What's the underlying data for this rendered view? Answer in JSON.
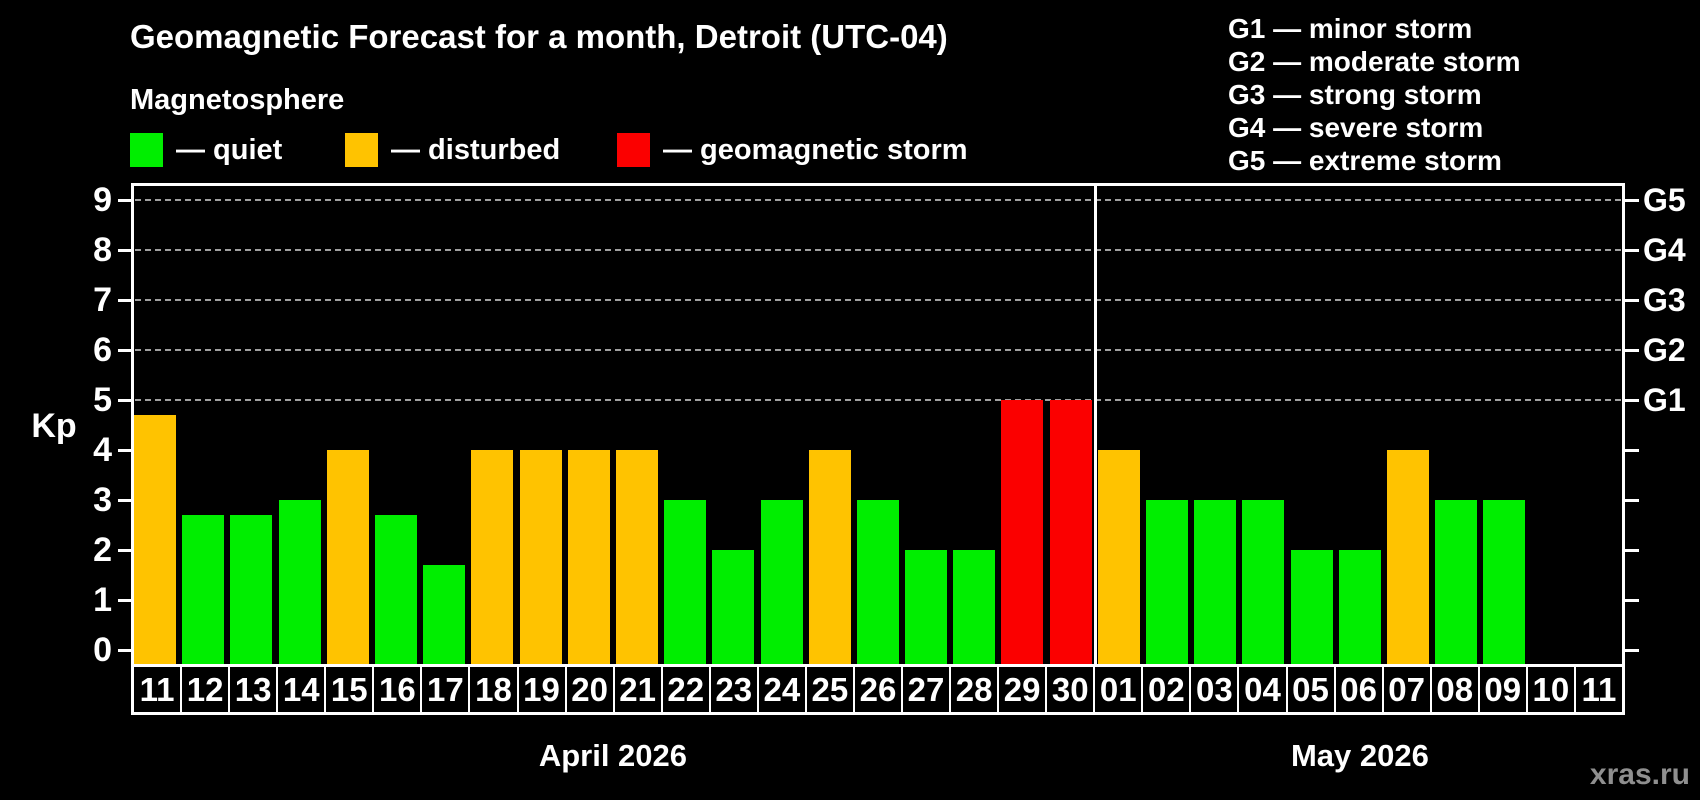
{
  "watermark": "xras.ru",
  "chart_data": {
    "type": "bar",
    "title": "Geomagnetic Forecast for a month, Detroit (UTC-04)",
    "subtitle": "Magnetosphere",
    "ylabel": "Kp",
    "ylim": [
      0,
      9
    ],
    "y_tick_labels": [
      "0",
      "1",
      "2",
      "3",
      "4",
      "5",
      "6",
      "7",
      "8",
      "9"
    ],
    "gridlines_at_kp": [
      5,
      6,
      7,
      8,
      9
    ],
    "grid": "dashed horizontal lines at Kp 5-9",
    "legend_position": "top-left",
    "legend": [
      {
        "key": "quiet",
        "label": "— quiet",
        "color": "#00ee00"
      },
      {
        "key": "disturbed",
        "label": "— disturbed",
        "color": "#ffc300"
      },
      {
        "key": "storm",
        "label": "— geomagnetic storm",
        "color": "#fb0000"
      }
    ],
    "g_scale_legend": [
      "G1 — minor storm",
      "G2 — moderate storm",
      "G3 — strong storm",
      "G4 — severe storm",
      "G5 — extreme storm"
    ],
    "right_axis": [
      {
        "kp": 5,
        "label": "G1"
      },
      {
        "kp": 6,
        "label": "G2"
      },
      {
        "kp": 7,
        "label": "G3"
      },
      {
        "kp": 8,
        "label": "G4"
      },
      {
        "kp": 9,
        "label": "G5"
      }
    ],
    "months": [
      {
        "label": "April 2026",
        "days": [
          {
            "day": "11",
            "kp": 4.7,
            "status": "disturbed"
          },
          {
            "day": "12",
            "kp": 2.7,
            "status": "quiet"
          },
          {
            "day": "13",
            "kp": 2.7,
            "status": "quiet"
          },
          {
            "day": "14",
            "kp": 3.0,
            "status": "quiet"
          },
          {
            "day": "15",
            "kp": 4.0,
            "status": "disturbed"
          },
          {
            "day": "16",
            "kp": 2.7,
            "status": "quiet"
          },
          {
            "day": "17",
            "kp": 1.7,
            "status": "quiet"
          },
          {
            "day": "18",
            "kp": 4.0,
            "status": "disturbed"
          },
          {
            "day": "19",
            "kp": 4.0,
            "status": "disturbed"
          },
          {
            "day": "20",
            "kp": 4.0,
            "status": "disturbed"
          },
          {
            "day": "21",
            "kp": 4.0,
            "status": "disturbed"
          },
          {
            "day": "22",
            "kp": 3.0,
            "status": "quiet"
          },
          {
            "day": "23",
            "kp": 2.0,
            "status": "quiet"
          },
          {
            "day": "24",
            "kp": 3.0,
            "status": "quiet"
          },
          {
            "day": "25",
            "kp": 4.0,
            "status": "disturbed"
          },
          {
            "day": "26",
            "kp": 3.0,
            "status": "quiet"
          },
          {
            "day": "27",
            "kp": 2.0,
            "status": "quiet"
          },
          {
            "day": "28",
            "kp": 2.0,
            "status": "quiet"
          },
          {
            "day": "29",
            "kp": 5.0,
            "status": "storm"
          },
          {
            "day": "30",
            "kp": 5.0,
            "status": "storm"
          }
        ]
      },
      {
        "label": "May 2026",
        "days": [
          {
            "day": "01",
            "kp": 4.0,
            "status": "disturbed"
          },
          {
            "day": "02",
            "kp": 3.0,
            "status": "quiet"
          },
          {
            "day": "03",
            "kp": 3.0,
            "status": "quiet"
          },
          {
            "day": "04",
            "kp": 3.0,
            "status": "quiet"
          },
          {
            "day": "05",
            "kp": 2.0,
            "status": "quiet"
          },
          {
            "day": "06",
            "kp": 2.0,
            "status": "quiet"
          },
          {
            "day": "07",
            "kp": 4.0,
            "status": "disturbed"
          },
          {
            "day": "08",
            "kp": 3.0,
            "status": "quiet"
          },
          {
            "day": "09",
            "kp": 3.0,
            "status": "quiet"
          },
          {
            "day": "10",
            "kp": null,
            "status": null
          },
          {
            "day": "11",
            "kp": null,
            "status": null
          }
        ]
      }
    ]
  }
}
